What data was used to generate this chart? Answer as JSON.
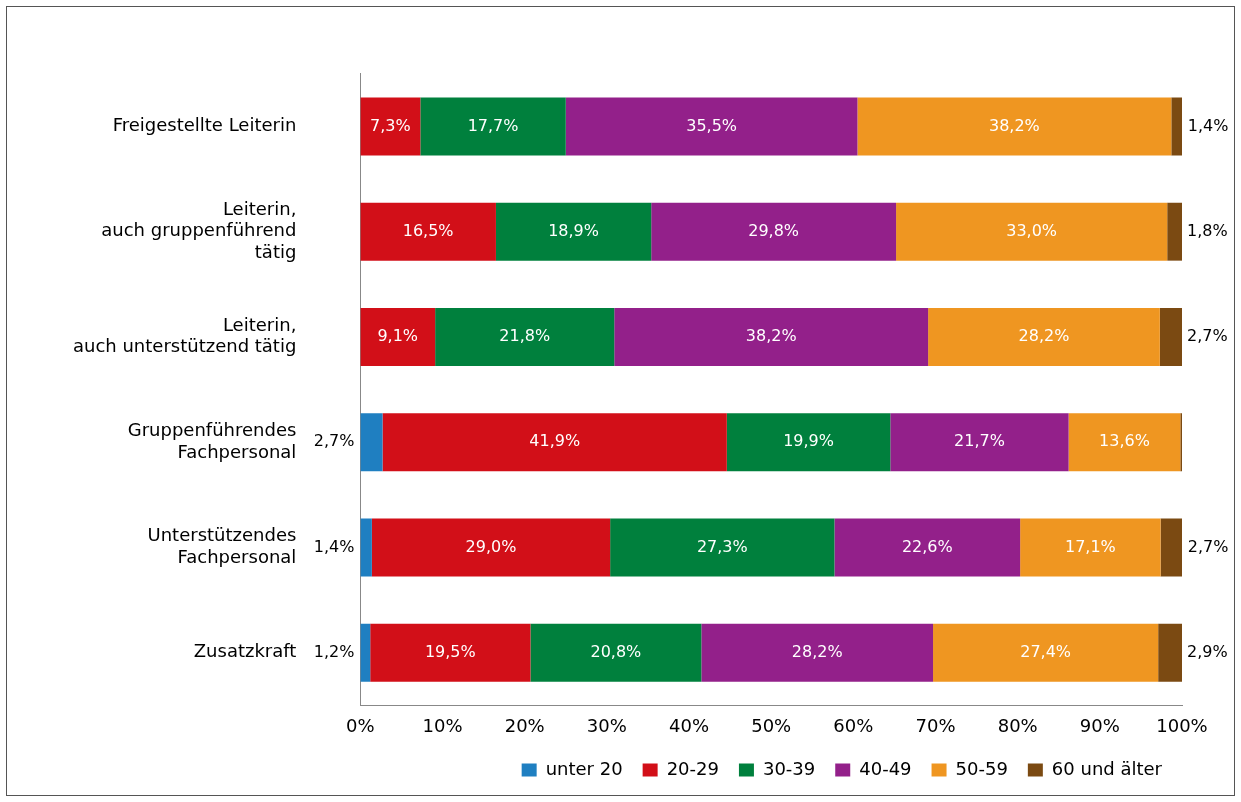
{
  "chart_data": {
    "type": "bar",
    "orientation": "horizontal",
    "stacked": true,
    "categories": [
      "Freigestellte Leiterin",
      "Leiterin,\nauch gruppenführend\ntätig",
      "Leiterin,\nauch unterstützend tätig",
      "Gruppenführendes\nFachpersonal",
      "Unterstützendes\nFachpersonal",
      "Zusatzkraft"
    ],
    "series": [
      {
        "name": "unter 20",
        "color": "#1f7fc1",
        "values": [
          null,
          null,
          null,
          2.7,
          1.4,
          1.2
        ],
        "value_labels": [
          null,
          null,
          null,
          "2,7%",
          "1,4%",
          "1,2%"
        ]
      },
      {
        "name": "20-29",
        "color": "#d20f18",
        "values": [
          7.3,
          16.5,
          9.1,
          41.9,
          29.0,
          19.5
        ],
        "value_labels": [
          "7,3%",
          "16,5%",
          "9,1%",
          "41,9%",
          "29,0%",
          "19,5%"
        ]
      },
      {
        "name": "30-39",
        "color": "#00803d",
        "values": [
          17.7,
          18.9,
          21.8,
          19.9,
          27.3,
          20.8
        ],
        "value_labels": [
          "17,7%",
          "18,9%",
          "21,8%",
          "19,9%",
          "27,3%",
          "20,8%"
        ]
      },
      {
        "name": "40-49",
        "color": "#93208a",
        "values": [
          35.5,
          29.8,
          38.2,
          21.7,
          22.6,
          28.2
        ],
        "value_labels": [
          "35,5%",
          "29,8%",
          "38,2%",
          "21,7%",
          "22,6%",
          "28,2%"
        ]
      },
      {
        "name": "50-59",
        "color": "#ef9621",
        "values": [
          38.2,
          33.0,
          28.2,
          13.6,
          17.1,
          27.4
        ],
        "value_labels": [
          "38,2%",
          "33,0%",
          "28,2%",
          "13,6%",
          "17,1%",
          "27,4%"
        ]
      },
      {
        "name": "60 und älter",
        "color": "#7b4a12",
        "values": [
          1.4,
          1.8,
          2.7,
          0.2,
          2.7,
          2.9
        ],
        "value_labels": [
          "1,4%",
          "1,8%",
          "2,7%",
          null,
          "2,7%",
          "2,9%"
        ]
      }
    ],
    "xlim": [
      0,
      100
    ],
    "xticks": [
      {
        "value": 0,
        "label": "0%"
      },
      {
        "value": 10,
        "label": "10%"
      },
      {
        "value": 20,
        "label": "20%"
      },
      {
        "value": 30,
        "label": "30%"
      },
      {
        "value": 40,
        "label": "40%"
      },
      {
        "value": 50,
        "label": "50%"
      },
      {
        "value": 60,
        "label": "60%"
      },
      {
        "value": 70,
        "label": "70%"
      },
      {
        "value": 80,
        "label": "80%"
      },
      {
        "value": 90,
        "label": "90%"
      },
      {
        "value": 100,
        "label": "100%"
      }
    ],
    "grid": false,
    "legend": "bottom right",
    "marker": "square"
  }
}
